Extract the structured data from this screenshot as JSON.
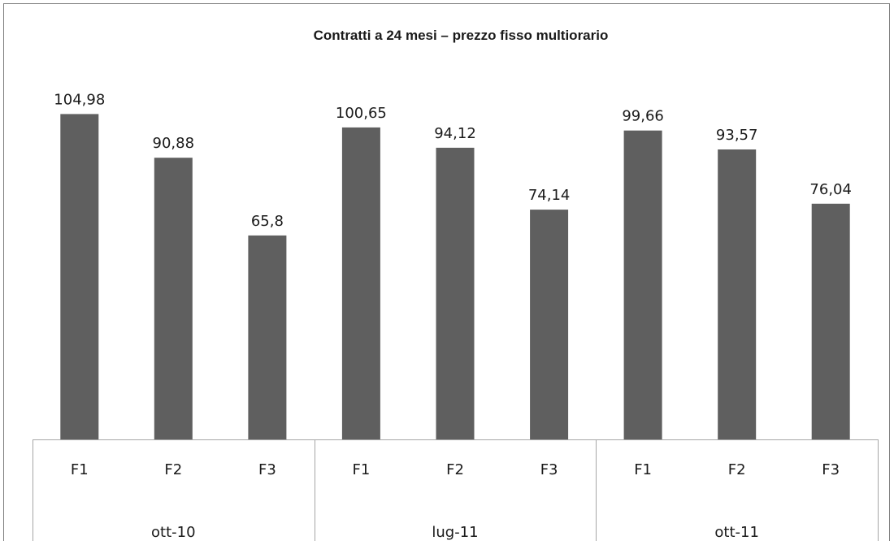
{
  "chart_data": {
    "type": "bar",
    "title": "Contratti a 24 mesi – prezzo fisso multiorario",
    "xlabel": "",
    "ylabel": "",
    "groups": [
      {
        "label": "ott-10",
        "categories": [
          "F1",
          "F2",
          "F3"
        ],
        "values": [
          104.98,
          90.88,
          65.8
        ],
        "value_labels": [
          "104,98",
          "90,88",
          "65,8"
        ]
      },
      {
        "label": "lug-11",
        "categories": [
          "F1",
          "F2",
          "F3"
        ],
        "values": [
          100.65,
          94.12,
          74.14
        ],
        "value_labels": [
          "100,65",
          "94,12",
          "74,14"
        ]
      },
      {
        "label": "ott-11",
        "categories": [
          "F1",
          "F2",
          "F3"
        ],
        "values": [
          99.66,
          93.57,
          76.04
        ],
        "value_labels": [
          "99,66",
          "93,57",
          "76,04"
        ]
      }
    ],
    "ylim": [
      0,
      114
    ],
    "grid": false,
    "legend": "none",
    "bar_color": "#5f5f5f",
    "axis_color": "#a6a6a6",
    "border_color": "#7f7f7f"
  }
}
